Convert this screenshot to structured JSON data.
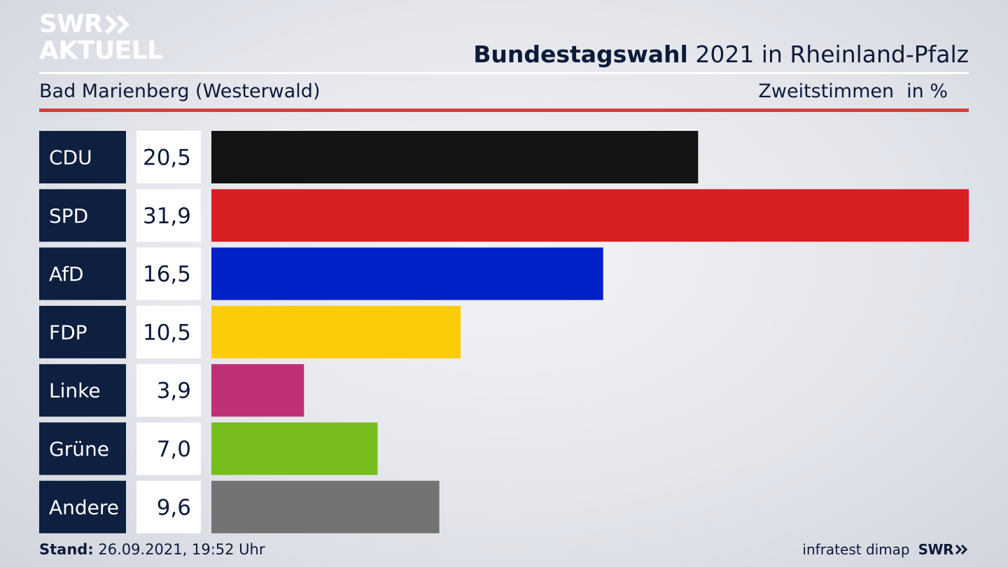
{
  "logo": {
    "line1": "SWR",
    "line2": "AKTUELL",
    "icon": "double-chevron-right-icon"
  },
  "header": {
    "title_bold": "Bundestagswahl",
    "title_rest": " 2021 in Rheinland-Pfalz",
    "subtitle": "Bad Marienberg (Westerwald)",
    "measure": "Zweitstimmen",
    "unit": "in %"
  },
  "chart_data": {
    "type": "bar",
    "orientation": "horizontal",
    "categories": [
      "CDU",
      "SPD",
      "AfD",
      "FDP",
      "Linke",
      "Grüne",
      "Andere"
    ],
    "values": [
      20.5,
      31.9,
      16.5,
      10.5,
      3.9,
      7.0,
      9.6
    ],
    "value_labels": [
      "20,5",
      "31,9",
      "16,5",
      "10,5",
      "3,9",
      "7,0",
      "9,6"
    ],
    "colors": [
      "#141414",
      "#d81f21",
      "#0020c8",
      "#fdcc09",
      "#be3075",
      "#78bd1e",
      "#737373"
    ],
    "xlim": [
      0,
      31.9
    ]
  },
  "footer": {
    "stand_label": "Stand:",
    "stand_value": " 26.09.2021, 19:52 Uhr",
    "source": "infratest dimap",
    "brand": "SWR",
    "brand_icon": "double-chevron-right-icon"
  }
}
